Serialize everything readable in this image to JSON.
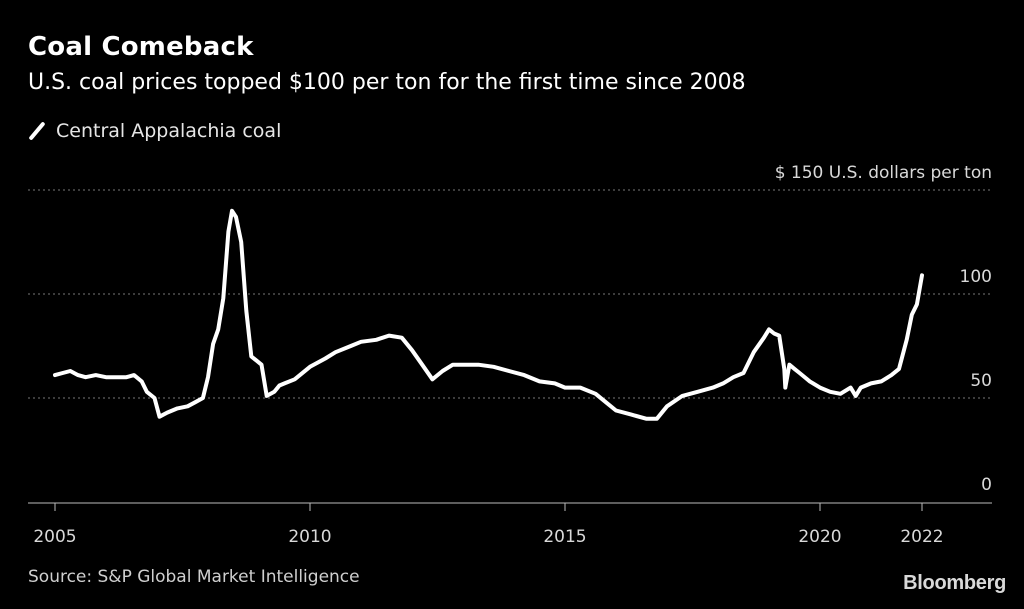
{
  "header": {
    "title": "Coal Comeback",
    "subtitle": "U.S. coal prices topped $100 per ton for the first time since 2008"
  },
  "legend": {
    "label": "Central Appalachia coal"
  },
  "footer": {
    "source": "Source: S&P Global Market Intelligence",
    "brand": "Bloomberg"
  },
  "colors": {
    "background": "#000000",
    "line": "#ffffff",
    "grid": "#777777",
    "text": "#d9d9d9"
  },
  "chart_data": {
    "type": "line",
    "title": "Coal Comeback",
    "subtitle": "U.S. coal prices topped $100 per ton for the first time since 2008",
    "ylabel": "U.S. dollars per ton",
    "ylim": [
      0,
      150
    ],
    "yticks": [
      0,
      50,
      100,
      150
    ],
    "ytick_labels": [
      "0",
      "50",
      "100",
      "$ 150 U.S. dollars per ton"
    ],
    "xlim": [
      2005,
      2023.3
    ],
    "xticks": [
      2005,
      2010,
      2015,
      2020,
      2022
    ],
    "xtick_labels": [
      "2005",
      "2010",
      "2015",
      "2020",
      "2022"
    ],
    "grid": "horizontal dotted",
    "legend_position": "top-left",
    "series": [
      {
        "name": "Central Appalachia coal",
        "x": [
          2005.0,
          2005.15,
          2005.3,
          2005.45,
          2005.6,
          2005.8,
          2006.0,
          2006.2,
          2006.4,
          2006.55,
          2006.7,
          2006.8,
          2006.95,
          2007.05,
          2007.2,
          2007.4,
          2007.6,
          2007.75,
          2007.9,
          2008.0,
          2008.1,
          2008.2,
          2008.3,
          2008.4,
          2008.47,
          2008.55,
          2008.65,
          2008.75,
          2008.85,
          2008.95,
          2009.05,
          2009.15,
          2009.3,
          2009.4,
          2009.5,
          2009.7,
          2010.0,
          2010.3,
          2010.5,
          2010.8,
          2011.0,
          2011.3,
          2011.55,
          2011.8,
          2012.0,
          2012.2,
          2012.4,
          2012.6,
          2012.8,
          2013.0,
          2013.3,
          2013.6,
          2013.9,
          2014.2,
          2014.5,
          2014.8,
          2015.0,
          2015.3,
          2015.6,
          2015.8,
          2016.0,
          2016.3,
          2016.6,
          2016.8,
          2017.0,
          2017.3,
          2017.6,
          2017.9,
          2018.1,
          2018.3,
          2018.5,
          2018.7,
          2018.9,
          2019.0,
          2019.1,
          2019.2,
          2019.3,
          2019.32,
          2019.4,
          2019.5,
          2019.6,
          2019.8,
          2020.0,
          2020.2,
          2020.4,
          2020.6,
          2020.7,
          2020.8,
          2021.0,
          2021.2,
          2021.4,
          2021.55,
          2021.7,
          2021.8,
          2021.9,
          2022.0
        ],
        "values": [
          61,
          62,
          63,
          61,
          60,
          61,
          60,
          60,
          60,
          61,
          58,
          53,
          50,
          41,
          43,
          45,
          46,
          48,
          50,
          60,
          76,
          83,
          98,
          130,
          140,
          137,
          125,
          92,
          70,
          68,
          66,
          51,
          53,
          56,
          57,
          59,
          65,
          69,
          72,
          75,
          77,
          78,
          80,
          79,
          73,
          66,
          59,
          63,
          66,
          66,
          66,
          65,
          63,
          61,
          58,
          57,
          55,
          55,
          52,
          48,
          44,
          42,
          40,
          40,
          46,
          51,
          53,
          55,
          57,
          60,
          62,
          72,
          79,
          83,
          81,
          80,
          64,
          55,
          66,
          64,
          62,
          58,
          55,
          53,
          52,
          55,
          51,
          55,
          57,
          58,
          61,
          64,
          78,
          90,
          95,
          109
        ]
      }
    ]
  }
}
